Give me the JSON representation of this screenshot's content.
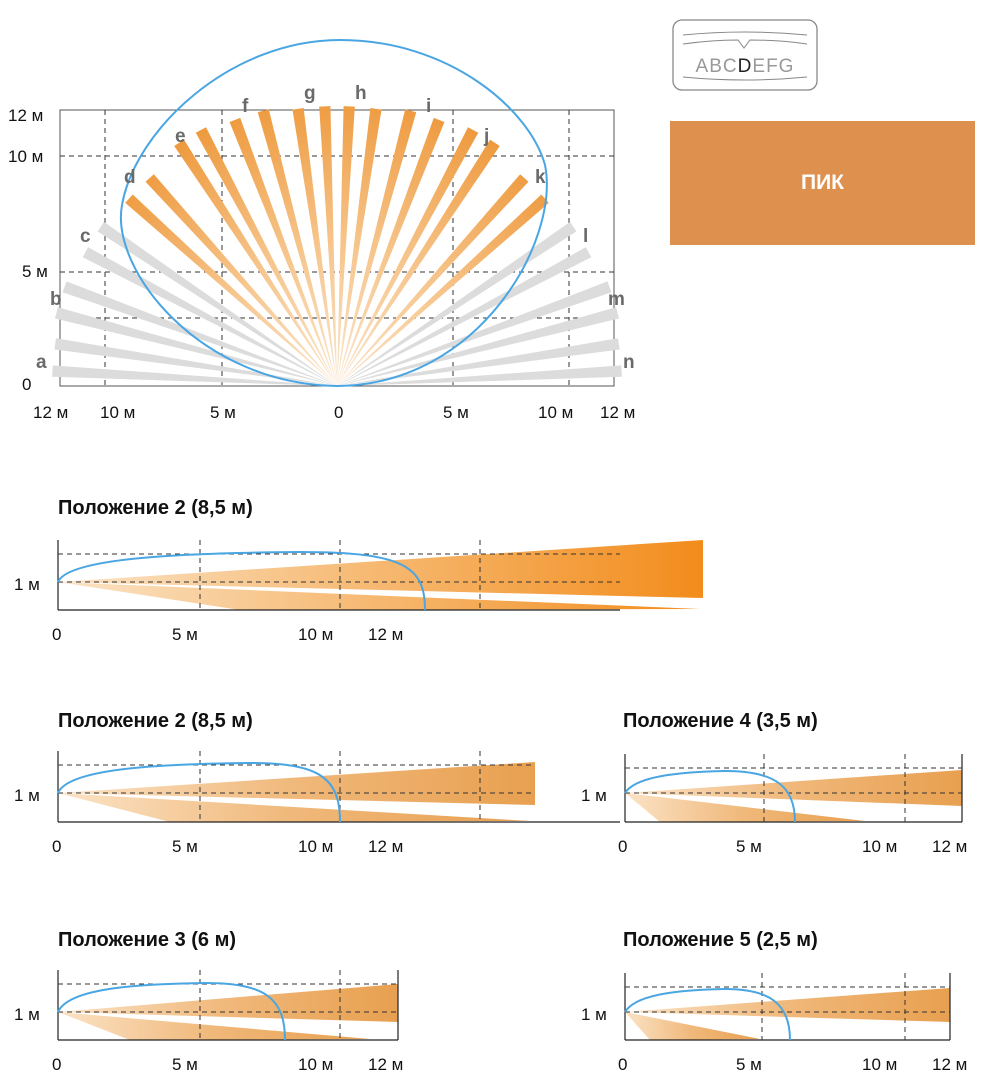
{
  "mode_box": {
    "label": "ПИК",
    "color": "#de914f"
  },
  "selector_icon": {
    "letters": [
      "A",
      "B",
      "C",
      "D",
      "E",
      "F",
      "G"
    ],
    "selected": "D"
  },
  "top_view": {
    "y_labels": [
      "12 м",
      "10 м",
      "5 м",
      "0"
    ],
    "x_labels": [
      "12 м",
      "10 м",
      "5 м",
      "0",
      "5 м",
      "10 м",
      "12 м"
    ],
    "beam_letters": [
      "a",
      "b",
      "c",
      "d",
      "e",
      "f",
      "g",
      "h",
      "i",
      "j",
      "k",
      "l",
      "m",
      "n"
    ]
  },
  "side_views": [
    {
      "title": "Положение 2 (8,5 м)",
      "y_label": "1 м",
      "x_labels": [
        "0",
        "5 м",
        "10 м",
        "12 м"
      ]
    },
    {
      "title": "Положение 2 (8,5 м)",
      "y_label": "1 м",
      "x_labels": [
        "0",
        "5 м",
        "10 м",
        "12 м"
      ]
    },
    {
      "title": "Положение 4 (3,5 м)",
      "y_label": "1 м",
      "x_labels": [
        "0",
        "5 м",
        "10 м",
        "12 м"
      ]
    },
    {
      "title": "Положение 3 (6 м)",
      "y_label": "1 м",
      "x_labels": [
        "0",
        "5 м",
        "10 м",
        "12 м"
      ]
    },
    {
      "title": "Положение 5 (2,5 м)",
      "y_label": "1 м",
      "x_labels": [
        "0",
        "5 м",
        "10 м",
        "12 м"
      ]
    }
  ],
  "colors": {
    "beam": "#f39020",
    "beam_light": "#fbe0c0",
    "zone": "#4aa6e3",
    "inactive": "#dcdcdc"
  }
}
